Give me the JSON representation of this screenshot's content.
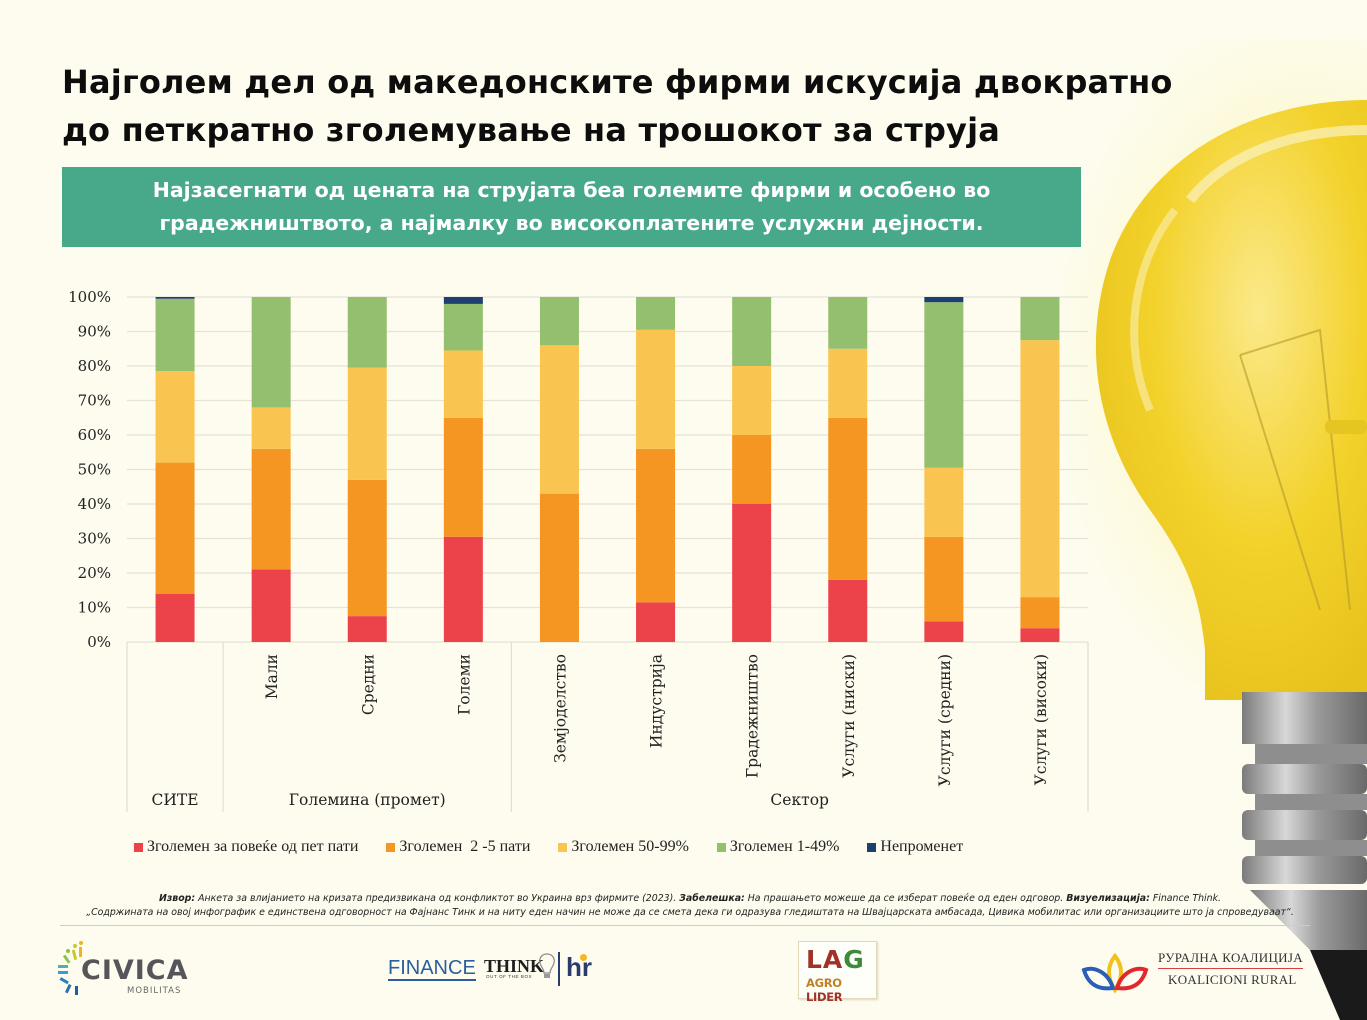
{
  "header": {
    "title_line1": "Најголем дел од македонските фирми искусија двократно",
    "title_line2": "до петкратно зголемување на трошокот за струја",
    "subtitle_line1": "Најзасегнати од цената на струјата беа големите фирми и особено во",
    "subtitle_line2": "градежништвото, а најмалку во високоплатените услужни дејности.",
    "subtitle_bg": "#48a98a"
  },
  "chart_data": {
    "type": "bar",
    "stacked": true,
    "title": "",
    "xlabel": "",
    "ylabel": "",
    "ylim": [
      0,
      100
    ],
    "y_ticks": [
      "0%",
      "10%",
      "20%",
      "30%",
      "40%",
      "50%",
      "60%",
      "70%",
      "80%",
      "90%",
      "100%"
    ],
    "grid": true,
    "legend_position": "bottom",
    "categories": [
      "",
      "Мали",
      "Средни",
      "Големи",
      "Земјоделство",
      "Индустрија",
      "Градежништво",
      "Услуги (ниски)",
      "Услуги (средни)",
      "Услуги (високи)"
    ],
    "groups": [
      {
        "label": "СИТЕ",
        "span": 1
      },
      {
        "label": "Големина (промет)",
        "span": 3
      },
      {
        "label": "Сектор",
        "span": 6
      }
    ],
    "series": [
      {
        "name": "Зголемен за повеќе од пет пати",
        "color": "#ec424a",
        "values": [
          14,
          21,
          7.5,
          30.5,
          0,
          11.5,
          40,
          18,
          6,
          4
        ]
      },
      {
        "name": "Зголемен  2 -5 пати",
        "color": "#f59522",
        "values": [
          38,
          35,
          39.5,
          34.5,
          43,
          44.5,
          20,
          47,
          24.5,
          9
        ]
      },
      {
        "name": "Зголемен 50-99%",
        "color": "#f9c550",
        "values": [
          26.5,
          12,
          32.5,
          19.5,
          43,
          34.5,
          20,
          20,
          20,
          74.5
        ]
      },
      {
        "name": "Зголемен 1-49%",
        "color": "#93bf6f",
        "values": [
          21,
          32,
          20.5,
          13.5,
          14,
          9.5,
          20,
          15,
          48,
          12.5
        ]
      },
      {
        "name": "Непроменет",
        "color": "#1f3e72",
        "values": [
          0.5,
          0,
          0,
          2,
          0,
          0,
          0,
          0,
          1.5,
          0
        ]
      }
    ]
  },
  "footer": {
    "source_label": "Извор:",
    "source_text": " Анкета за влијанието на кризата предизвикана од конфликтот во Украина врз фирмите (2023). ",
    "note_label": "Забелешка:",
    "note_text": " На прашањето можеше да се изберат повеќе од еден одговор. ",
    "viz_label": "Визуелизација:",
    "viz_text": " Finance Think.",
    "disclaimer": "„Содржината на овој инфографик е единствена одговорност на Фајнанс Тинк и на ниту еден начин не може да се смета дека ги одразува гледиштата на Швајцарската амбасада, Цивика мобилитас или организациите што ја спроведуваат“."
  },
  "logos": {
    "civica": "CIVICA",
    "civica_sub": "MOBILITAS",
    "finance": "FINANCE",
    "think": "THINK",
    "think_sub": "OUT OF THE BOX",
    "hr": "hr",
    "lag_l": "LA",
    "lag_g": "G",
    "lag_agro": "AGRO ",
    "lag_lider": "LIDER",
    "rural_mk": "РУРАЛНА КОАЛИЦИЈА",
    "rural_al": "KOALICIONI RURAL"
  }
}
